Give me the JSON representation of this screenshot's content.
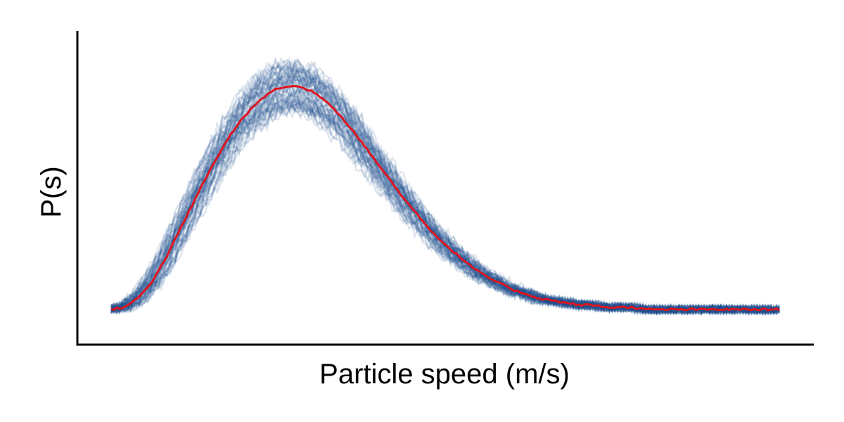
{
  "chart_data": {
    "type": "line",
    "title": "",
    "xlabel": "Particle speed (m/s)",
    "ylabel": "P(s)",
    "x_tick_labels": [],
    "y_tick_labels": [],
    "grid": false,
    "legend": "none",
    "xlim": [
      0,
      1
    ],
    "ylim": [
      0,
      1
    ],
    "colors": {
      "samples": "#1f4e8c",
      "mean": "#e0141e"
    },
    "series": [
      {
        "role": "samples",
        "count": 60,
        "spread": 0.06,
        "x": [
          0.0,
          0.02,
          0.04,
          0.06,
          0.08,
          0.1,
          0.12,
          0.14,
          0.16,
          0.18,
          0.2,
          0.22,
          0.24,
          0.26,
          0.28,
          0.3,
          0.32,
          0.34,
          0.36,
          0.38,
          0.4,
          0.42,
          0.44,
          0.46,
          0.48,
          0.5,
          0.52,
          0.54,
          0.56,
          0.58,
          0.6,
          0.62,
          0.64,
          0.66,
          0.68,
          0.7,
          0.72,
          0.74,
          0.76,
          0.78,
          0.8,
          0.82,
          0.84,
          0.86,
          0.88,
          0.9,
          0.92,
          0.94,
          0.96,
          0.98,
          1.0
        ],
        "y": [
          0.0,
          0.01,
          0.05,
          0.12,
          0.22,
          0.34,
          0.46,
          0.58,
          0.69,
          0.79,
          0.87,
          0.93,
          0.98,
          1.0,
          1.0,
          0.98,
          0.94,
          0.88,
          0.81,
          0.73,
          0.65,
          0.57,
          0.49,
          0.42,
          0.35,
          0.29,
          0.24,
          0.19,
          0.15,
          0.12,
          0.09,
          0.07,
          0.05,
          0.04,
          0.03,
          0.02,
          0.02,
          0.01,
          0.01,
          0.01,
          0.0,
          0.0,
          0.0,
          0.0,
          0.0,
          0.0,
          0.0,
          0.0,
          0.0,
          0.0,
          0.0
        ]
      },
      {
        "role": "mean",
        "x": [
          0.0,
          0.02,
          0.04,
          0.06,
          0.08,
          0.1,
          0.12,
          0.14,
          0.16,
          0.18,
          0.2,
          0.22,
          0.24,
          0.26,
          0.28,
          0.3,
          0.32,
          0.34,
          0.36,
          0.38,
          0.4,
          0.42,
          0.44,
          0.46,
          0.48,
          0.5,
          0.52,
          0.54,
          0.56,
          0.58,
          0.6,
          0.62,
          0.64,
          0.66,
          0.68,
          0.7,
          0.72,
          0.74,
          0.76,
          0.78,
          0.8,
          0.82,
          0.84,
          0.86,
          0.88,
          0.9,
          0.92,
          0.94,
          0.96,
          0.98,
          1.0
        ],
        "y": [
          0.0,
          0.01,
          0.05,
          0.12,
          0.22,
          0.34,
          0.46,
          0.58,
          0.69,
          0.79,
          0.87,
          0.93,
          0.98,
          1.0,
          1.0,
          0.98,
          0.94,
          0.88,
          0.81,
          0.73,
          0.65,
          0.57,
          0.49,
          0.42,
          0.35,
          0.29,
          0.24,
          0.19,
          0.15,
          0.12,
          0.09,
          0.07,
          0.05,
          0.04,
          0.03,
          0.02,
          0.02,
          0.01,
          0.01,
          0.01,
          0.0,
          0.0,
          0.0,
          0.0,
          0.0,
          0.0,
          0.0,
          0.0,
          0.0,
          0.0,
          0.0
        ]
      }
    ]
  }
}
